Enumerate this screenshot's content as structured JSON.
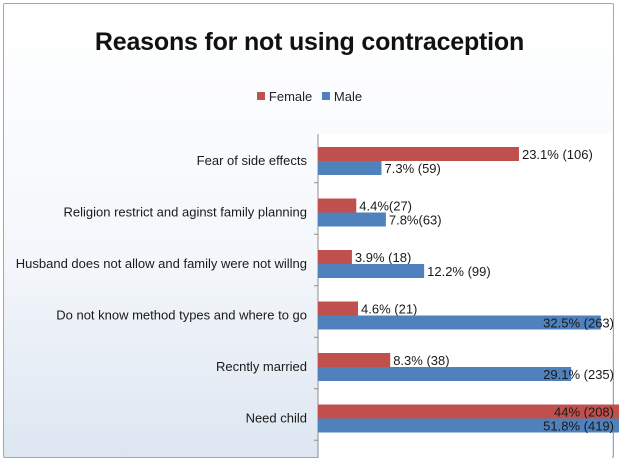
{
  "chart_data": {
    "type": "bar",
    "orientation": "horizontal",
    "title": "Reasons for not using contraception",
    "legend_position": "top",
    "categories": [
      "Fear of side effects",
      "Religion restrict and aginst family planning",
      "Husband does not allow and family were not willng",
      "Do not know method types and  where to go",
      "Recntly married",
      "Need  child"
    ],
    "series": [
      {
        "name": "Female",
        "color": "#c0504d",
        "values": [
          23.1,
          4.4,
          3.9,
          4.6,
          8.3,
          44
        ],
        "labels": [
          "23.1% (106)",
          "4.4%(27)",
          "3.9% (18)",
          "4.6%  (21)",
          "8.3%  (38)",
          "44% (208)"
        ]
      },
      {
        "name": "Male",
        "color": "#4f81bd",
        "values": [
          7.3,
          7.8,
          12.2,
          32.5,
          29.1,
          51.8
        ],
        "labels": [
          "7.3% (59)",
          "7.8%(63)",
          "12.2% (99)",
          "32.5% (263)",
          "29.1% (235)",
          "51.8% (419)"
        ]
      }
    ],
    "xlim": [
      0,
      50
    ],
    "grid": false
  }
}
